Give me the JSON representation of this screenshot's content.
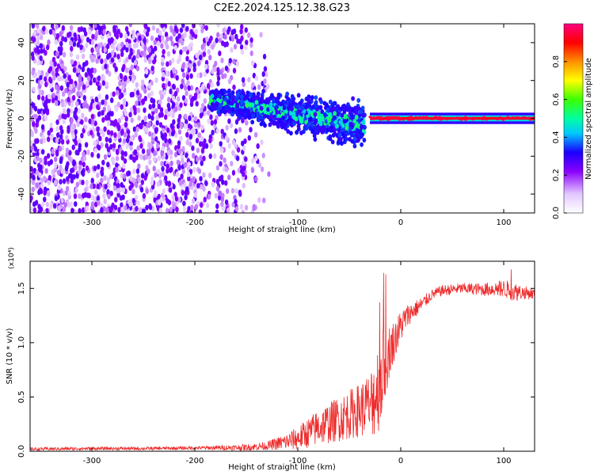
{
  "title": "C2E2.2024.125.12.38.G23",
  "colors": {
    "snr_line": "#ee2a2a",
    "axis": "#000000",
    "spectrum_scale": [
      "#ffffff",
      "#8a00ff",
      "#0000ff",
      "#00ffff",
      "#00ff00",
      "#ffff00",
      "#ff8000",
      "#ff0000",
      "#ff0080"
    ]
  },
  "chart_data": [
    {
      "type": "heatmap",
      "title": "C2E2.2024.125.12.38.G23",
      "xlabel": "Height of straight line (km)",
      "ylabel": "Frequency (Hz)",
      "xlim": [
        -360,
        130
      ],
      "ylim": [
        -50,
        50
      ],
      "xticks": [
        -300,
        -200,
        -100,
        0,
        100
      ],
      "yticks": [
        -40,
        -20,
        0,
        20,
        40
      ],
      "grid": false,
      "colorbar": {
        "label": "Normalized spectral amplitude",
        "range": [
          0.0,
          1.0
        ],
        "ticks": [
          "0.0",
          "0.2",
          "0.4",
          "0.6",
          "0.8"
        ],
        "tick_values": [
          0.0,
          0.2,
          0.4,
          0.6,
          0.8
        ]
      },
      "regions": [
        {
          "x": [
            -360,
            -130
          ],
          "freq": [
            -50,
            50
          ],
          "amplitude": "0.15-0.25",
          "pattern": "noise"
        },
        {
          "x": [
            -185,
            -35
          ],
          "freq": [
            -15,
            15
          ],
          "amplitude": "0.3-0.55",
          "pattern": "band"
        },
        {
          "x": [
            -30,
            130
          ],
          "freq": [
            -2,
            2
          ],
          "amplitude": "0.8-0.95",
          "pattern": "line"
        }
      ]
    },
    {
      "type": "line",
      "xlabel": "Height of straight line (km)",
      "ylabel": "SNR (10 * v/v)",
      "scale_label": "(x10⁴)",
      "xlim": [
        -360,
        130
      ],
      "ylim": [
        0,
        17500
      ],
      "xticks": [
        -300,
        -200,
        -100,
        0,
        100
      ],
      "yticks": [
        0,
        5000,
        10000,
        15000
      ],
      "ytick_labels": [
        "0.0",
        "0.5",
        "1.0",
        "1.5"
      ],
      "grid": false,
      "series": [
        {
          "x": [
            -360,
            -300,
            -250,
            -200,
            -150,
            -130,
            -110,
            -100,
            -90,
            -80,
            -70,
            -60,
            -50,
            -40,
            -30,
            -25,
            -20,
            -15,
            -10,
            -5,
            0,
            5,
            10,
            20,
            30,
            40,
            60,
            80,
            100,
            110,
            120,
            130
          ],
          "y": [
            200,
            250,
            250,
            300,
            350,
            500,
            900,
            1200,
            1700,
            2200,
            2600,
            3000,
            3400,
            3800,
            4300,
            5200,
            6500,
            8200,
            9500,
            10500,
            11500,
            12300,
            12800,
            13500,
            14400,
            14800,
            15000,
            14900,
            15000,
            14700,
            14600,
            14500
          ],
          "spread": [
            150,
            150,
            150,
            150,
            300,
            400,
            800,
            1100,
            1400,
            1700,
            1900,
            2100,
            2300,
            2500,
            3000,
            4000,
            4500,
            3500,
            2200,
            1800,
            1500,
            1200,
            900,
            700,
            500,
            500,
            500,
            600,
            800,
            900,
            600,
            500
          ]
        }
      ]
    }
  ]
}
